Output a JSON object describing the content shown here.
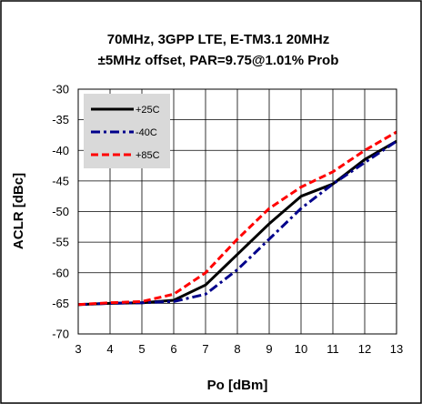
{
  "chart_data": {
    "type": "line",
    "title_line1": "70MHz, 3GPP LTE, E-TM3.1 20MHz",
    "title_line2": "±5MHz offset, PAR=9.75@1.01% Prob",
    "xlabel": "Po [dBm]",
    "ylabel": "ACLR [dBc]",
    "xlim": [
      3,
      13
    ],
    "ylim": [
      -70,
      -30
    ],
    "xticks": [
      "3",
      "4",
      "5",
      "6",
      "7",
      "8",
      "9",
      "10",
      "11",
      "12",
      "13"
    ],
    "yticks": [
      "-30",
      "-35",
      "-40",
      "-45",
      "-50",
      "-55",
      "-60",
      "-65",
      "-70"
    ],
    "grid": true,
    "legend_position": "top-left",
    "x": [
      3,
      4,
      5,
      6,
      7,
      8,
      9,
      10,
      11,
      12,
      13
    ],
    "series": [
      {
        "name": "+25C",
        "color": "#000000",
        "dash": "solid",
        "values": [
          -65.2,
          -65.0,
          -64.9,
          -64.5,
          -62.0,
          -57.0,
          -52.0,
          -47.5,
          -45.5,
          -41.5,
          -38.5
        ]
      },
      {
        "name": "-40C",
        "color": "#00008b",
        "dash": "dashdot",
        "values": [
          -65.2,
          -65.0,
          -64.9,
          -64.7,
          -63.5,
          -59.5,
          -54.5,
          -49.5,
          -45.5,
          -42.0,
          -38.5
        ]
      },
      {
        "name": "+85C",
        "color": "#ff0000",
        "dash": "dashed",
        "values": [
          -65.2,
          -64.9,
          -64.7,
          -63.5,
          -60.0,
          -54.5,
          -49.5,
          -46.0,
          -43.5,
          -40.0,
          -37.0
        ]
      }
    ]
  }
}
